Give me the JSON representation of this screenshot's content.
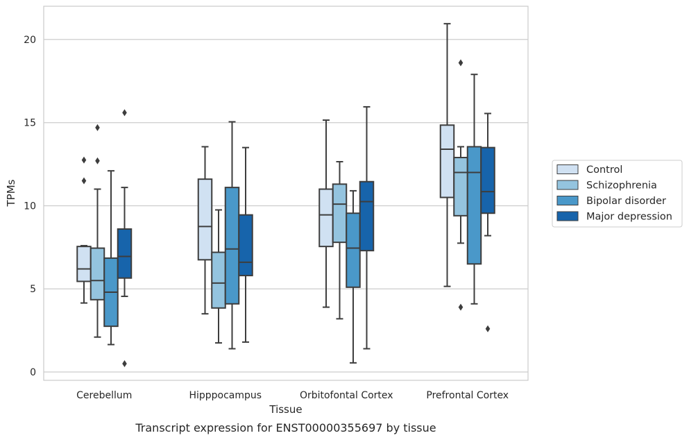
{
  "caption": "Transcript expression for ENST00000355697 by tissue",
  "chart_data": {
    "type": "box",
    "xlabel": "Tissue",
    "ylabel": "TPMs",
    "ylim": [
      -0.5,
      22.0
    ],
    "yticks": [
      0,
      5,
      10,
      15,
      20
    ],
    "grid": "horizontal",
    "legend_position": "right",
    "categories": [
      "Cerebellum",
      "Hipppocampus",
      "Orbitofontal Cortex",
      "Prefrontal Cortex"
    ],
    "series": [
      {
        "name": "Control",
        "color": "#d0e1f2",
        "boxes": [
          {
            "whislo": 4.15,
            "q1": 5.45,
            "med": 6.2,
            "q3": 7.55,
            "whishi": 7.6,
            "fliers": [
              12.75,
              11.5
            ]
          },
          {
            "whislo": 3.5,
            "q1": 6.75,
            "med": 8.75,
            "q3": 11.6,
            "whishi": 13.55,
            "fliers": []
          },
          {
            "whislo": 3.9,
            "q1": 7.55,
            "med": 9.45,
            "q3": 11.0,
            "whishi": 15.15,
            "fliers": []
          },
          {
            "whislo": 5.15,
            "q1": 10.5,
            "med": 13.4,
            "q3": 14.85,
            "whishi": 20.95,
            "fliers": []
          }
        ]
      },
      {
        "name": "Schizophrenia",
        "color": "#94c4df",
        "boxes": [
          {
            "whislo": 2.1,
            "q1": 4.35,
            "med": 5.5,
            "q3": 7.45,
            "whishi": 11.0,
            "fliers": [
              14.7,
              12.7
            ]
          },
          {
            "whislo": 1.75,
            "q1": 3.85,
            "med": 5.35,
            "q3": 7.2,
            "whishi": 9.75,
            "fliers": []
          },
          {
            "whislo": 3.2,
            "q1": 7.8,
            "med": 10.1,
            "q3": 11.3,
            "whishi": 12.65,
            "fliers": []
          },
          {
            "whislo": 7.75,
            "q1": 9.4,
            "med": 12.0,
            "q3": 12.9,
            "whishi": 13.55,
            "fliers": [
              18.6,
              3.9
            ]
          }
        ]
      },
      {
        "name": "Bipolar disorder",
        "color": "#4a98c9",
        "boxes": [
          {
            "whislo": 1.65,
            "q1": 2.75,
            "med": 4.8,
            "q3": 6.85,
            "whishi": 12.1,
            "fliers": []
          },
          {
            "whislo": 1.4,
            "q1": 4.1,
            "med": 7.4,
            "q3": 11.1,
            "whishi": 15.05,
            "fliers": []
          },
          {
            "whislo": 0.55,
            "q1": 5.1,
            "med": 7.45,
            "q3": 9.55,
            "whishi": 10.9,
            "fliers": []
          },
          {
            "whislo": 4.1,
            "q1": 6.5,
            "med": 12.0,
            "q3": 13.55,
            "whishi": 17.9,
            "fliers": []
          }
        ]
      },
      {
        "name": "Major depression",
        "color": "#1764ab",
        "boxes": [
          {
            "whislo": 4.55,
            "q1": 5.65,
            "med": 6.95,
            "q3": 8.6,
            "whishi": 11.1,
            "fliers": [
              15.6,
              0.5
            ]
          },
          {
            "whislo": 1.8,
            "q1": 5.8,
            "med": 6.6,
            "q3": 9.45,
            "whishi": 13.5,
            "fliers": []
          },
          {
            "whislo": 1.4,
            "q1": 7.3,
            "med": 10.25,
            "q3": 11.45,
            "whishi": 15.95,
            "fliers": []
          },
          {
            "whislo": 8.2,
            "q1": 9.55,
            "med": 10.85,
            "q3": 13.5,
            "whishi": 15.55,
            "fliers": [
              2.6
            ]
          }
        ]
      }
    ]
  }
}
